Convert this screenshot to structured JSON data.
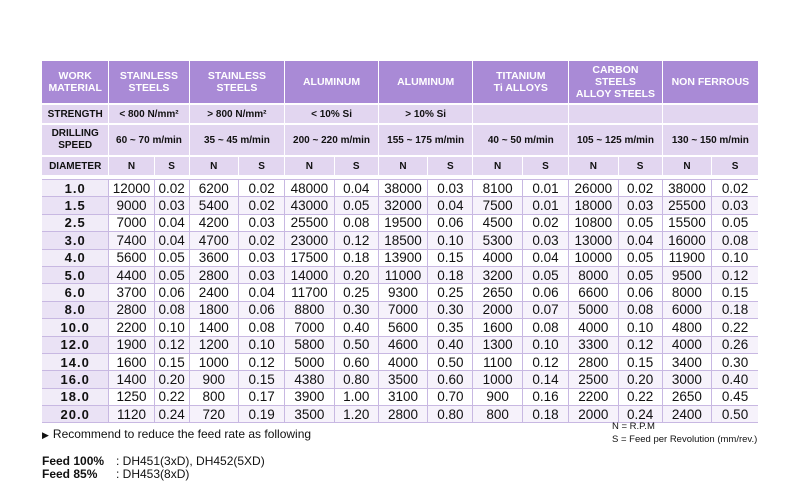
{
  "headers": {
    "work_material": "WORK\nMATERIAL",
    "materials": [
      "STAINLESS\nSTEELS",
      "STAINLESS\nSTEELS",
      "ALUMINUM",
      "ALUMINUM",
      "TITANIUM\nTi ALLOYS",
      "CARBON\nSTEELS\nALLOY STEELS",
      "NON FERROUS"
    ]
  },
  "strength": {
    "label": "STRENGTH",
    "values": [
      "< 800 N/mm²",
      "> 800 N/mm²",
      "< 10% Si",
      "> 10% Si",
      "",
      "",
      ""
    ]
  },
  "drilling_speed": {
    "label": "DRILLING\nSPEED",
    "values": [
      "60 ~ 70 m/min",
      "35 ~ 45 m/min",
      "200 ~ 220 m/min",
      "155 ~ 175 m/min",
      "40 ~ 50 m/min",
      "105 ~ 125 m/min",
      "130 ~ 150 m/min"
    ]
  },
  "diameter_label": "DIAMETER",
  "col_n": "N",
  "col_s": "S",
  "rows": [
    {
      "d": "1.0",
      "v": [
        "12000",
        "0.02",
        "6200",
        "0.02",
        "48000",
        "0.04",
        "38000",
        "0.03",
        "8100",
        "0.01",
        "26000",
        "0.02",
        "38000",
        "0.02"
      ]
    },
    {
      "d": "1.5",
      "v": [
        "9000",
        "0.03",
        "5400",
        "0.02",
        "43000",
        "0.05",
        "32000",
        "0.04",
        "7500",
        "0.01",
        "18000",
        "0.03",
        "25500",
        "0.03"
      ]
    },
    {
      "d": "2.5",
      "v": [
        "7000",
        "0.04",
        "4200",
        "0.03",
        "25500",
        "0.08",
        "19500",
        "0.06",
        "4500",
        "0.02",
        "10800",
        "0.05",
        "15500",
        "0.05"
      ]
    },
    {
      "d": "3.0",
      "v": [
        "7400",
        "0.04",
        "4700",
        "0.02",
        "23000",
        "0.12",
        "18500",
        "0.10",
        "5300",
        "0.03",
        "13000",
        "0.04",
        "16000",
        "0.08"
      ]
    },
    {
      "d": "4.0",
      "v": [
        "5600",
        "0.05",
        "3600",
        "0.03",
        "17500",
        "0.18",
        "13900",
        "0.15",
        "4000",
        "0.04",
        "10000",
        "0.05",
        "11900",
        "0.10"
      ]
    },
    {
      "d": "5.0",
      "v": [
        "4400",
        "0.05",
        "2800",
        "0.03",
        "14000",
        "0.20",
        "11000",
        "0.18",
        "3200",
        "0.05",
        "8000",
        "0.05",
        "9500",
        "0.12"
      ]
    },
    {
      "d": "6.0",
      "v": [
        "3700",
        "0.06",
        "2400",
        "0.04",
        "11700",
        "0.25",
        "9300",
        "0.25",
        "2650",
        "0.06",
        "6600",
        "0.06",
        "8000",
        "0.15"
      ]
    },
    {
      "d": "8.0",
      "v": [
        "2800",
        "0.08",
        "1800",
        "0.06",
        "8800",
        "0.30",
        "7000",
        "0.30",
        "2000",
        "0.07",
        "5000",
        "0.08",
        "6000",
        "0.18"
      ]
    },
    {
      "d": "10.0",
      "v": [
        "2200",
        "0.10",
        "1400",
        "0.08",
        "7000",
        "0.40",
        "5600",
        "0.35",
        "1600",
        "0.08",
        "4000",
        "0.10",
        "4800",
        "0.22"
      ]
    },
    {
      "d": "12.0",
      "v": [
        "1900",
        "0.12",
        "1200",
        "0.10",
        "5800",
        "0.50",
        "4600",
        "0.40",
        "1300",
        "0.10",
        "3300",
        "0.12",
        "4000",
        "0.26"
      ]
    },
    {
      "d": "14.0",
      "v": [
        "1600",
        "0.15",
        "1000",
        "0.12",
        "5000",
        "0.60",
        "4000",
        "0.50",
        "1100",
        "0.12",
        "2800",
        "0.15",
        "3400",
        "0.30"
      ]
    },
    {
      "d": "16.0",
      "v": [
        "1400",
        "0.20",
        "900",
        "0.15",
        "4380",
        "0.80",
        "3500",
        "0.60",
        "1000",
        "0.14",
        "2500",
        "0.20",
        "3000",
        "0.40"
      ]
    },
    {
      "d": "18.0",
      "v": [
        "1250",
        "0.22",
        "800",
        "0.17",
        "3900",
        "1.00",
        "3100",
        "0.70",
        "900",
        "0.16",
        "2200",
        "0.22",
        "2650",
        "0.45"
      ]
    },
    {
      "d": "20.0",
      "v": [
        "1120",
        "0.24",
        "720",
        "0.19",
        "3500",
        "1.20",
        "2800",
        "0.80",
        "800",
        "0.18",
        "2000",
        "0.24",
        "2400",
        "0.50"
      ]
    }
  ],
  "note": {
    "marker": "▶",
    "text": "Recommend to reduce the feed rate as following"
  },
  "legend": {
    "n": "N = R.P.M",
    "s": "S = Feed per Revolution (mm/rev.)"
  },
  "feeds": [
    {
      "label": "Feed 100%",
      "value": ": DH451(3xD), DH452(5XD)"
    },
    {
      "label": "Feed 85%",
      "value": ": DH453(8xD)"
    }
  ]
}
